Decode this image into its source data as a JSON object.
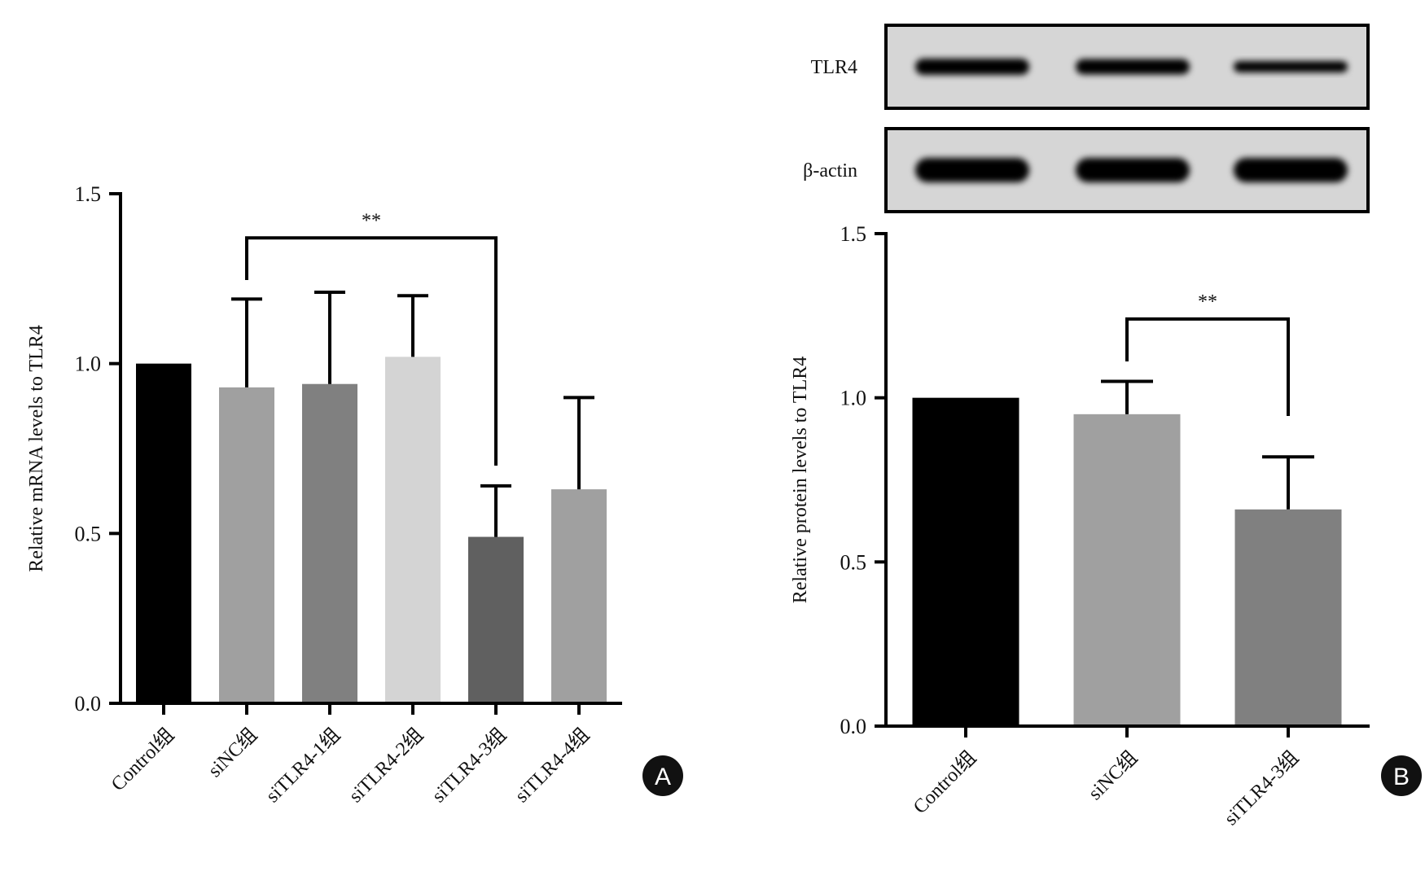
{
  "chart_data": [
    {
      "type": "bar",
      "panel": "A",
      "ylabel": "Relative mRNA levels to TLR4",
      "ylim": [
        0,
        1.5
      ],
      "yticks": [
        "0.0",
        "0.5",
        "1.0",
        "1.5"
      ],
      "categories": [
        "Control组",
        "siNC组",
        "siTLR4-1组",
        "siTLR4-2组",
        "siTLR4-3组",
        "siTLR4-4组"
      ],
      "values": [
        1.0,
        0.93,
        0.94,
        1.02,
        0.49,
        0.63
      ],
      "error_upper": [
        null,
        1.19,
        1.21,
        1.2,
        0.64,
        0.9
      ],
      "colors": [
        "#000000",
        "#a0a0a0",
        "#808080",
        "#d4d4d4",
        "#606060",
        "#a0a0a0"
      ],
      "significance": {
        "from": 1,
        "to": 4,
        "label": "**",
        "level": 1.37
      }
    },
    {
      "type": "bar",
      "panel": "B",
      "ylabel": "Relative protein levels to TLR4",
      "ylim": [
        0,
        1.5
      ],
      "yticks": [
        "0.0",
        "0.5",
        "1.0",
        "1.5"
      ],
      "categories": [
        "Control组",
        "siNC组",
        "siTLR4-3组"
      ],
      "values": [
        1.0,
        0.95,
        0.66
      ],
      "error_upper": [
        null,
        1.05,
        0.82
      ],
      "colors": [
        "#000000",
        "#a0a0a0",
        "#808080"
      ],
      "significance": {
        "from": 1,
        "to": 2,
        "label": "**",
        "level": 1.24
      }
    }
  ],
  "blot": {
    "rows": [
      {
        "label": "TLR4",
        "intensities": [
          1.0,
          0.95,
          0.7
        ]
      },
      {
        "label": "β-actin",
        "intensities": [
          1.0,
          1.0,
          1.0
        ]
      }
    ]
  },
  "panel_labels": [
    "A",
    "B"
  ]
}
